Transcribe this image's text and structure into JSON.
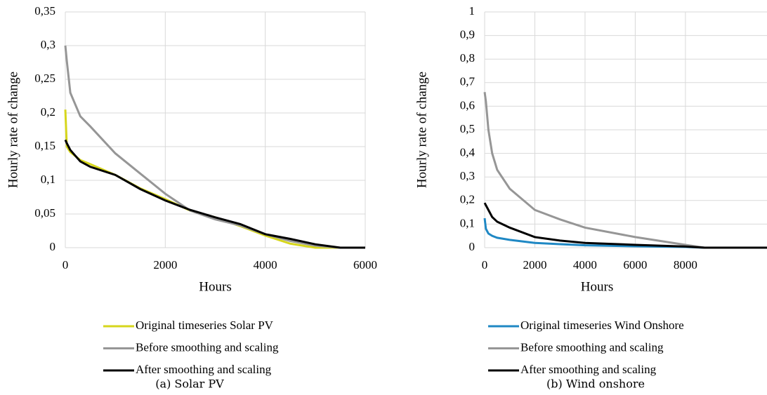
{
  "chart_data": [
    {
      "type": "line",
      "caption": "(a) Solar PV",
      "x_label": "Hours",
      "y_label": "Hourly rate of change",
      "x": [
        0,
        30,
        100,
        300,
        500,
        1000,
        1500,
        2000,
        2500,
        3000,
        3500,
        4000,
        4500,
        5000,
        5500,
        6000
      ],
      "series": [
        {
          "name": "Original timeseries Solar PV",
          "color": "#d6d61c",
          "values": [
            0.205,
            0.15,
            0.142,
            0.13,
            0.124,
            0.108,
            0.088,
            0.072,
            0.055,
            0.045,
            0.032,
            0.018,
            0.006,
            0,
            0,
            0
          ]
        },
        {
          "name": "Before smoothing and scaling",
          "color": "#969696",
          "values": [
            0.3,
            0.277,
            0.23,
            0.195,
            0.18,
            0.14,
            0.11,
            0.08,
            0.055,
            0.042,
            0.033,
            0.02,
            0.01,
            0.003,
            0,
            0
          ]
        },
        {
          "name": "After smoothing and scaling",
          "color": "#000000",
          "values": [
            0.16,
            0.155,
            0.145,
            0.128,
            0.12,
            0.108,
            0.087,
            0.07,
            0.056,
            0.045,
            0.035,
            0.02,
            0.013,
            0.005,
            0,
            0
          ]
        }
      ],
      "xlim": [
        0,
        6000
      ],
      "xticks": [
        0,
        2000,
        4000,
        6000
      ],
      "ylim": [
        0,
        0.35
      ],
      "yticks": [
        0,
        {
          "value": 0.05,
          "label": "0,05"
        },
        {
          "value": 0.1,
          "label": "0,1"
        },
        {
          "value": 0.15,
          "label": "0,15"
        },
        {
          "value": 0.2,
          "label": "0,2"
        },
        {
          "value": 0.25,
          "label": "0,25"
        },
        {
          "value": 0.3,
          "label": "0,3"
        },
        {
          "value": 0.35,
          "label": "0,35"
        }
      ],
      "grid": true
    },
    {
      "type": "line",
      "caption": "(b) Wind onshore",
      "x_label": "Hours",
      "y_label": "Hourly rate of change",
      "x": [
        0,
        50,
        150,
        300,
        500,
        1000,
        2000,
        3000,
        4000,
        6000,
        8000,
        8760,
        11250
      ],
      "series": [
        {
          "name": "Original timeseries Wind Onshore",
          "color": "#1f88c4",
          "values": [
            0.125,
            0.08,
            0.06,
            0.05,
            0.042,
            0.033,
            0.02,
            0.015,
            0.01,
            0.006,
            0.003,
            0,
            0
          ]
        },
        {
          "name": "Before smoothing and scaling",
          "color": "#969696",
          "values": [
            0.66,
            0.62,
            0.5,
            0.4,
            0.33,
            0.25,
            0.16,
            0.12,
            0.085,
            0.045,
            0.012,
            0,
            0
          ]
        },
        {
          "name": "After smoothing and scaling",
          "color": "#000000",
          "values": [
            0.19,
            0.18,
            0.16,
            0.13,
            0.11,
            0.085,
            0.045,
            0.03,
            0.02,
            0.012,
            0.005,
            0,
            0
          ]
        }
      ],
      "xlim": [
        0,
        11250
      ],
      "xticks": [
        0,
        2000,
        4000,
        6000,
        8000
      ],
      "ylim": [
        0,
        1
      ],
      "yticks": [
        0,
        {
          "value": 0.1,
          "label": "0,1"
        },
        {
          "value": 0.2,
          "label": "0,2"
        },
        {
          "value": 0.3,
          "label": "0,3"
        },
        {
          "value": 0.4,
          "label": "0,4"
        },
        {
          "value": 0.5,
          "label": "0,5"
        },
        {
          "value": 0.6,
          "label": "0,6"
        },
        {
          "value": 0.7,
          "label": "0,7"
        },
        {
          "value": 0.8,
          "label": "0,8"
        },
        {
          "value": 0.9,
          "label": "0,9"
        },
        1
      ],
      "grid": true
    }
  ]
}
